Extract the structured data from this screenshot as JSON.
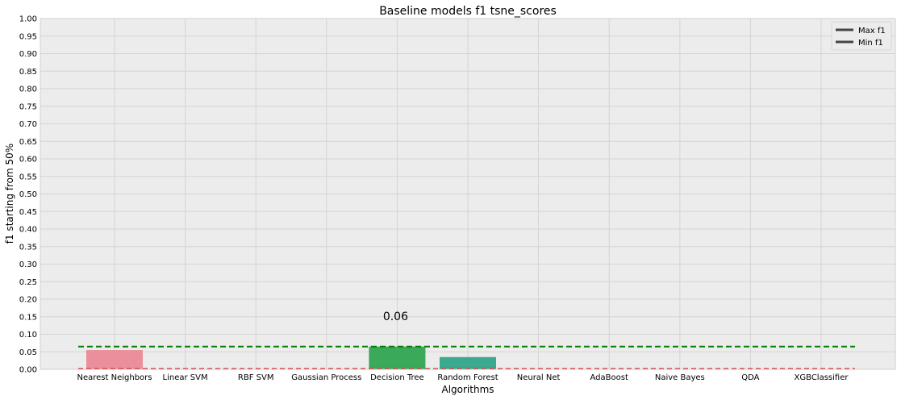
{
  "chart_data": {
    "type": "bar",
    "title": "Baseline models f1 tsne_scores",
    "xlabel": "Algorithms",
    "ylabel": "f1 starting from 50%",
    "ylim": [
      0,
      1.0
    ],
    "ytick_step": 0.05,
    "yticks": [
      "0.00",
      "0.05",
      "0.10",
      "0.15",
      "0.20",
      "0.25",
      "0.30",
      "0.35",
      "0.40",
      "0.45",
      "0.50",
      "0.55",
      "0.60",
      "0.65",
      "0.70",
      "0.75",
      "0.80",
      "0.85",
      "0.90",
      "0.95",
      "1.00"
    ],
    "categories": [
      "Nearest Neighbors",
      "Linear SVM",
      "RBF SVM",
      "Gaussian Process",
      "Decision Tree",
      "Random Forest",
      "Neural Net",
      "AdaBoost",
      "Naive Bayes",
      "QDA",
      "XGBClassifier"
    ],
    "values": [
      0.055,
      0,
      0,
      0,
      0.065,
      0.035,
      0,
      0,
      0,
      0,
      0
    ],
    "bar_colors": [
      "#ec8f9c",
      "#e8d3a0",
      "#e6ddb5",
      "#d6ddb3",
      "#3aa95a",
      "#3aa98e",
      "#9aa3d6",
      "#b99ad6",
      "#d6a3c9",
      "#e3b2c8",
      "#e8b6bf"
    ],
    "max_line": 0.065,
    "min_line": 0.0,
    "max_line_color": "#008000",
    "min_line_color": "#d62728",
    "annotation": {
      "text": "0.06",
      "category": "Decision Tree",
      "y": 0.17
    },
    "legend": {
      "position": "top-right",
      "entries": [
        "Max f1",
        "Min f1"
      ]
    },
    "grid": true,
    "background": "#ececec"
  }
}
